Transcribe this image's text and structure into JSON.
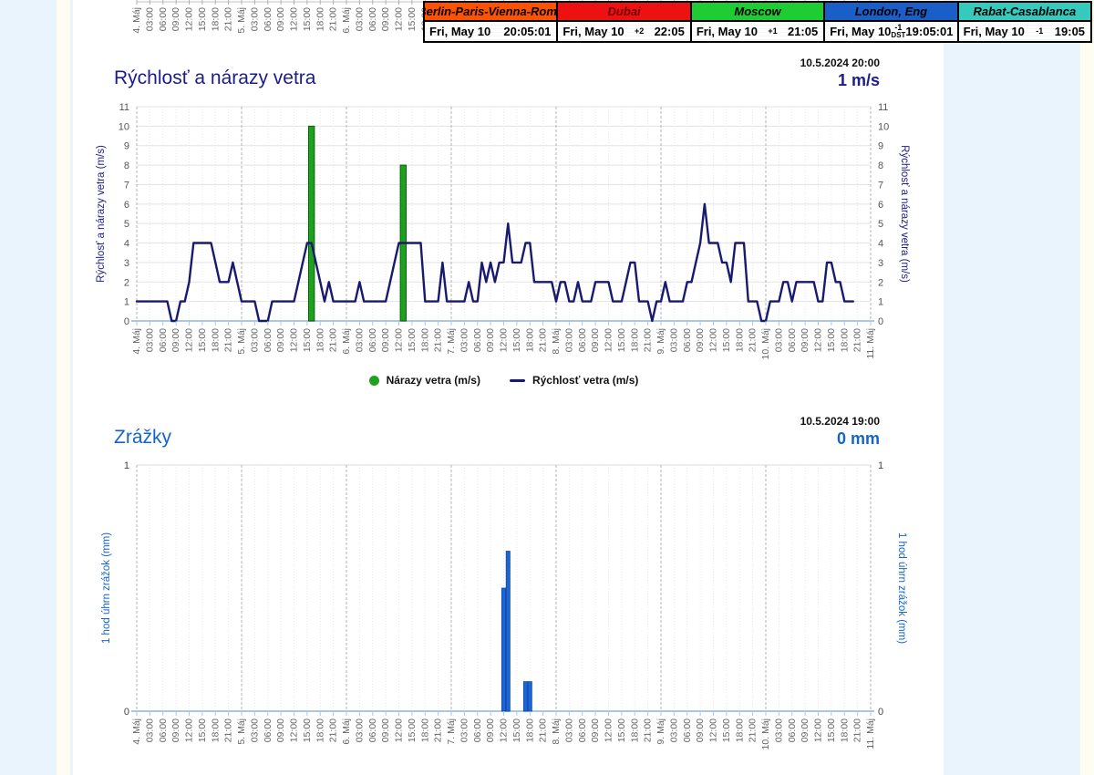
{
  "theme": {
    "page_background": "#e9f4fc",
    "panel_background": "#ffffff",
    "navy": "#191970",
    "title_navy": "#1c1c8a",
    "rain_blue": "#1565c8",
    "gust_green": "#1ea21e",
    "baseline_blue": "#a9c7e7"
  },
  "clocks": {
    "cities": [
      {
        "name": "Berlin-Paris-Vienna-Roma",
        "header_color": "#ff5200",
        "name_color": "#000000",
        "date": "Fri, May 10",
        "offset_sup": "",
        "offset_label": "",
        "time": "20:05:01"
      },
      {
        "name": "Dubai",
        "header_color": "#ee1111",
        "name_color": "#700000",
        "date": "Fri, May 10",
        "offset_sup": "+2",
        "offset_label": "",
        "time": "22:05"
      },
      {
        "name": "Moscow",
        "header_color": "#1ecc33",
        "name_color": "#000000",
        "date": "Fri, May 10",
        "offset_sup": "+1",
        "offset_label": "",
        "time": "21:05"
      },
      {
        "name": "London, Eng",
        "header_color": "#1a5fc8",
        "name_color": "#000000",
        "date": "Fri, May 10",
        "offset_sup": "-1",
        "offset_label": "DST",
        "time": "19:05:01"
      },
      {
        "name": "Rabat-Casablanca",
        "header_color": "#36c9bd",
        "name_color": "#000000",
        "date": "Fri, May 10",
        "offset_sup": "-1",
        "offset_label": "",
        "time": "19:05"
      }
    ]
  },
  "chart_data": [
    {
      "type": "line",
      "title": "Rýchlosť a nárazy vetra",
      "ylabel_left": "Rýchlosť a nárazy vetra (m/s)",
      "ylabel_right": "Rýchlosť a nárazy vetra (m/s)",
      "ylim": [
        0,
        11
      ],
      "x_range": "4. Máj 00:00 – 11. Máj 00:00, 1 hodina na bod",
      "grid": true,
      "legend_position": "bottom-center",
      "tick_labels": [
        "4. Máj",
        "03:00",
        "06:00",
        "09:00",
        "12:00",
        "15:00",
        "18:00",
        "21:00",
        "5. Máj",
        "03:00",
        "06:00",
        "09:00",
        "12:00",
        "15:00",
        "18:00",
        "21:00",
        "6. Máj",
        "03:00",
        "06:00",
        "09:00",
        "12:00",
        "15:00",
        "18:00",
        "21:00",
        "7. Máj",
        "03:00",
        "06:00",
        "09:00",
        "12:00",
        "15:00",
        "18:00",
        "21:00",
        "8. Máj",
        "03:00",
        "06:00",
        "09:00",
        "12:00",
        "15:00",
        "18:00",
        "21:00",
        "9. Máj",
        "03:00",
        "06:00",
        "09:00",
        "12:00",
        "15:00",
        "18:00",
        "21:00",
        "10. Máj",
        "03:00",
        "06:00",
        "09:00",
        "12:00",
        "15:00",
        "18:00",
        "21:00",
        "11. Máj"
      ],
      "series": [
        {
          "name": "Nárazy vetra (m/s)",
          "kind": "bar",
          "color": "#1ea21e",
          "points": [
            {
              "hour": 40,
              "label": "5. Máj 16:00",
              "value": 10
            },
            {
              "hour": 61,
              "label": "6. Máj 13:00",
              "value": 8
            }
          ]
        },
        {
          "name": "Rýchlosť vetra (m/s)",
          "kind": "line",
          "color": "#191970",
          "values": [
            1,
            1,
            1,
            1,
            1,
            1,
            1,
            1,
            0,
            0,
            1,
            1,
            2,
            4,
            4,
            4,
            4,
            4,
            3,
            2,
            2,
            2,
            3,
            2,
            1,
            1,
            1,
            1,
            0,
            0,
            0,
            1,
            1,
            1,
            1,
            1,
            1,
            2,
            3,
            4,
            4,
            3,
            2,
            1,
            2,
            1,
            1,
            1,
            1,
            1,
            1,
            2,
            1,
            1,
            1,
            1,
            1,
            1,
            2,
            3,
            4,
            4,
            4,
            4,
            4,
            4,
            1,
            1,
            1,
            1,
            3,
            1,
            1,
            1,
            1,
            1,
            2,
            1,
            1,
            3,
            2,
            3,
            2,
            3,
            3,
            5,
            3,
            3,
            3,
            4,
            4,
            2,
            2,
            2,
            2,
            2,
            1,
            2,
            2,
            1,
            1,
            2,
            1,
            1,
            1,
            2,
            2,
            2,
            2,
            1,
            1,
            1,
            2,
            3,
            3,
            1,
            1,
            1,
            0,
            1,
            1,
            2,
            1,
            1,
            1,
            1,
            2,
            2,
            3,
            4,
            6,
            4,
            4,
            4,
            3,
            3,
            2,
            4,
            4,
            4,
            1,
            1,
            1,
            0,
            0,
            1,
            1,
            1,
            2,
            2,
            1,
            2,
            2,
            2,
            2,
            2,
            1,
            1,
            3,
            3,
            2,
            2,
            1,
            1,
            1
          ]
        }
      ],
      "current": {
        "datetime": "10.5.2024 20:00",
        "value": "1 m/s"
      }
    },
    {
      "type": "bar",
      "title": "Zrážky",
      "ylabel_left": "1 hod úhrn zrážok (mm)",
      "ylabel_right": "1 hod úhrn zrážok (mm)",
      "ylim": [
        0,
        1
      ],
      "grid": true,
      "bar_color": "#1b66d4",
      "tick_labels": [
        "4. Máj",
        "03:00",
        "06:00",
        "09:00",
        "12:00",
        "15:00",
        "18:00",
        "21:00",
        "5. Máj",
        "03:00",
        "06:00",
        "09:00",
        "12:00",
        "15:00",
        "18:00",
        "21:00",
        "6. Máj",
        "03:00",
        "06:00",
        "09:00",
        "12:00",
        "15:00",
        "18:00",
        "21:00",
        "7. Máj",
        "03:00",
        "06:00",
        "09:00",
        "12:00",
        "15:00",
        "18:00",
        "21:00",
        "8. Máj",
        "03:00",
        "06:00",
        "09:00",
        "12:00",
        "15:00",
        "18:00",
        "21:00",
        "9. Máj",
        "03:00",
        "06:00",
        "09:00",
        "12:00",
        "15:00",
        "18:00",
        "21:00",
        "10. Máj",
        "03:00",
        "06:00",
        "09:00",
        "12:00",
        "15:00",
        "18:00",
        "21:00",
        "11. Máj"
      ],
      "bars": [
        {
          "hour": 84,
          "label": "7. Máj 12:00",
          "value": 0.5
        },
        {
          "hour": 85,
          "label": "7. Máj 13:00",
          "value": 0.65
        },
        {
          "hour": 89,
          "label": "7. Máj 17:00",
          "value": 0.12
        },
        {
          "hour": 90,
          "label": "7. Máj 18:00",
          "value": 0.12
        }
      ],
      "current": {
        "datetime": "10.5.2024 19:00",
        "value": "0 mm"
      }
    }
  ]
}
